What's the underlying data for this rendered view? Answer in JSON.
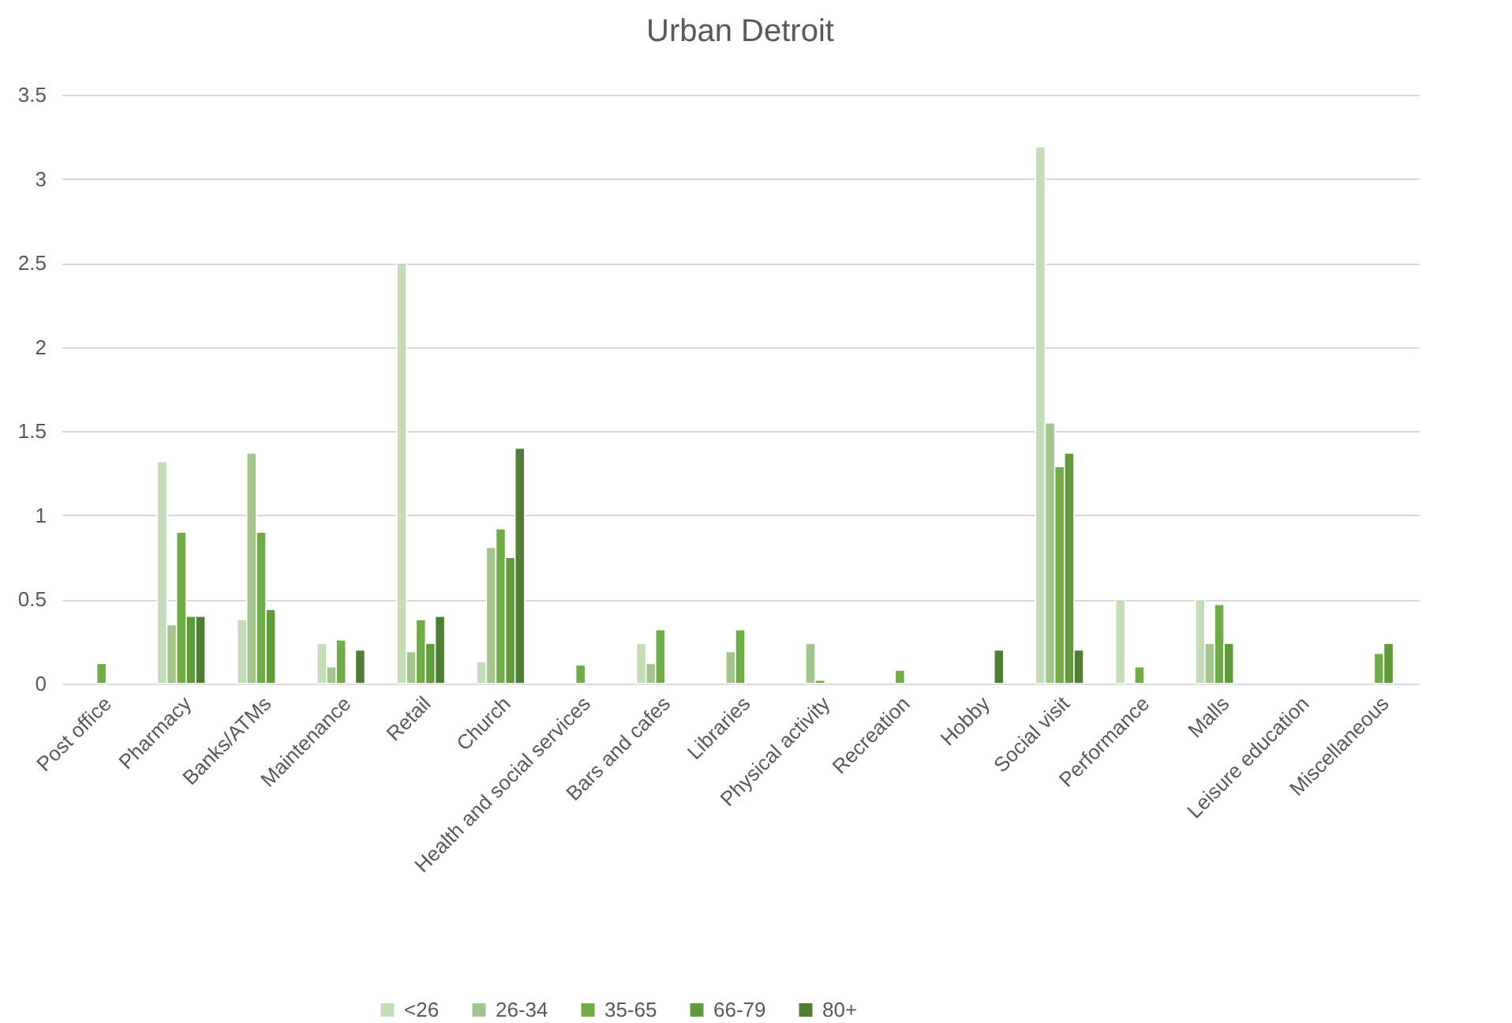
{
  "chart_data": {
    "type": "bar",
    "title": "Urban Detroit",
    "categories": [
      "Post office",
      "Pharmacy",
      "Banks/ATMs",
      "Maintenance",
      "Retail",
      "Church",
      "Health and social services",
      "Bars and cafes",
      "Libraries",
      "Physical activity",
      "Recreation",
      "Hobby",
      "Social visit",
      "Performance",
      "Malls",
      "Leisure education",
      "Miscellaneous"
    ],
    "series": [
      {
        "name": "<26",
        "color": "#c5dcb9",
        "values": [
          null,
          1.32,
          0.38,
          0.24,
          2.5,
          0.13,
          null,
          0.24,
          null,
          null,
          null,
          null,
          3.19,
          0.5,
          0.5,
          null,
          null
        ]
      },
      {
        "name": "26-34",
        "color": "#a2c58b",
        "values": [
          null,
          0.35,
          1.37,
          0.1,
          0.19,
          0.81,
          null,
          0.12,
          0.19,
          0.24,
          null,
          null,
          1.55,
          null,
          0.24,
          null,
          null
        ]
      },
      {
        "name": "35-65",
        "color": "#70ad47",
        "values": [
          0.12,
          0.9,
          0.9,
          0.26,
          0.38,
          0.92,
          0.11,
          0.32,
          0.32,
          0.02,
          0.08,
          null,
          1.29,
          0.1,
          0.47,
          null,
          0.18
        ]
      },
      {
        "name": "66-79",
        "color": "#5f9a3b",
        "values": [
          null,
          0.4,
          0.44,
          null,
          0.24,
          0.75,
          null,
          null,
          null,
          null,
          null,
          null,
          1.37,
          null,
          0.24,
          null,
          0.24
        ]
      },
      {
        "name": "80+",
        "color": "#4e7f32",
        "values": [
          null,
          0.4,
          null,
          0.2,
          0.4,
          1.4,
          null,
          null,
          null,
          null,
          null,
          0.2,
          0.2,
          null,
          null,
          null,
          null
        ]
      }
    ],
    "ylim": [
      0,
      3.5
    ],
    "yticks": [
      0,
      0.5,
      1,
      1.5,
      2,
      2.5,
      3,
      3.5
    ],
    "grid": "y",
    "legend": "bottom"
  }
}
